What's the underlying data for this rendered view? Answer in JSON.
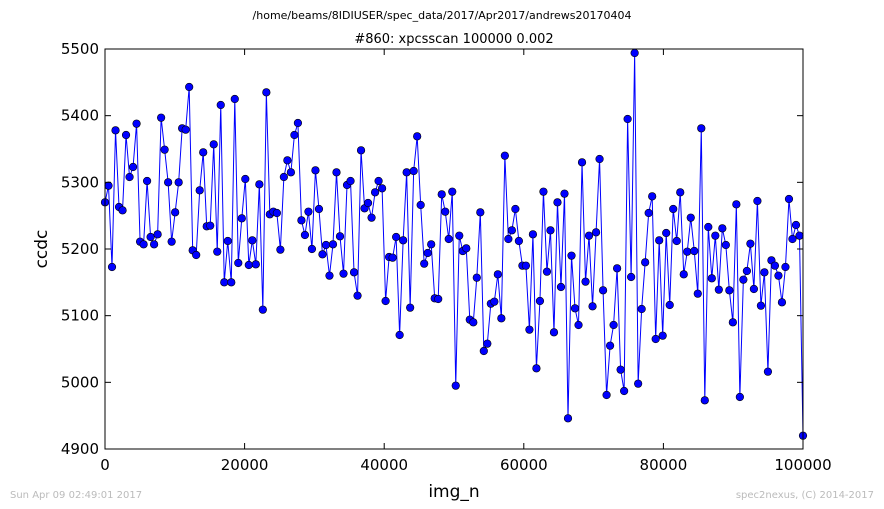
{
  "header": {
    "suptitle": "/home/beams/8IDIUSER/spec_data/2017/Apr2017/andrews20170404"
  },
  "footer": {
    "timestamp": "Sun Apr 09 02:49:01 2017",
    "credit": "spec2nexus, (C) 2014-2017"
  },
  "chart_data": {
    "type": "line",
    "title": "#860: xpcsscan 100000 0.002",
    "xlabel": "img_n",
    "ylabel": "ccdc",
    "xlim": [
      0,
      100000
    ],
    "ylim": [
      4900,
      5500
    ],
    "xticks": [
      "0",
      "20000",
      "40000",
      "60000",
      "80000",
      "100000"
    ],
    "yticks": [
      "4900",
      "5000",
      "5100",
      "5200",
      "5300",
      "5400",
      "5500"
    ],
    "grid": false,
    "legend": "none",
    "marker": "circle",
    "line_color": "#0000ff",
    "series": [
      {
        "x": [
          0,
          503,
          1005,
          1508,
          2010,
          2513,
          3015,
          3518,
          4020,
          4523,
          5025,
          5528,
          6030,
          6533,
          7035,
          7538,
          8040,
          8543,
          9045,
          9548,
          10050,
          10553,
          11055,
          11558,
          12060,
          12563,
          13065,
          13568,
          14070,
          14573,
          15075,
          15578,
          16080,
          16583,
          17085,
          17588,
          18090,
          18593,
          19095,
          19598,
          20101,
          20603,
          21106,
          21608,
          22111,
          22613,
          23116,
          23618,
          24121,
          24623,
          25126,
          25628,
          26131,
          26633,
          27136,
          27638,
          28141,
          28643,
          29146,
          29648,
          30151,
          30653,
          31156,
          31658,
          32161,
          32663,
          33166,
          33668,
          34171,
          34673,
          35176,
          35678,
          36181,
          36683,
          37186,
          37688,
          38191,
          38693,
          39196,
          39698,
          40201,
          40704,
          41206,
          41709,
          42211,
          42714,
          43216,
          43719,
          44221,
          44724,
          45226,
          45729,
          46231,
          46734,
          47236,
          47739,
          48241,
          48744,
          49246,
          49749,
          50251,
          50754,
          51256,
          51759,
          52261,
          52764,
          53266,
          53769,
          54271,
          54774,
          55276,
          55779,
          56281,
          56784,
          57286,
          57789,
          58291,
          58794,
          59296,
          59799,
          60302,
          60804,
          61307,
          61809,
          62312,
          62814,
          63317,
          63819,
          64322,
          64824,
          65327,
          65829,
          66332,
          66834,
          67337,
          67839,
          68342,
          68844,
          69347,
          69849,
          70352,
          70854,
          71357,
          71859,
          72362,
          72864,
          73367,
          73869,
          74372,
          74874,
          75377,
          75879,
          76382,
          76884,
          77387,
          77889,
          78392,
          78894,
          79397,
          79899,
          80402,
          80905,
          81407,
          81910,
          82412,
          82915,
          83417,
          83920,
          84422,
          84925,
          85427,
          85930,
          86432,
          86935,
          87437,
          87940,
          88442,
          88945,
          89447,
          89950,
          90452,
          90955,
          91457,
          91960,
          92462,
          92965,
          93467,
          93970,
          94472,
          94975,
          95477,
          95980,
          96482,
          96985,
          97487,
          97990,
          98492,
          98995,
          99497,
          100000
        ],
        "values": [
          5270,
          5295,
          5173,
          5378,
          5263,
          5258,
          5371,
          5308,
          5323,
          5388,
          5211,
          5207,
          5302,
          5218,
          5207,
          5222,
          5397,
          5349,
          5300,
          5211,
          5255,
          5300,
          5381,
          5379,
          5443,
          5198,
          5191,
          5288,
          5345,
          5234,
          5235,
          5357,
          5196,
          5416,
          5150,
          5212,
          5150,
          5425,
          5179,
          5246,
          5305,
          5176,
          5213,
          5177,
          5297,
          5109,
          5435,
          5252,
          5256,
          5254,
          5199,
          5308,
          5333,
          5315,
          5371,
          5389,
          5243,
          5221,
          5256,
          5200,
          5318,
          5260,
          5192,
          5206,
          5160,
          5207,
          5315,
          5219,
          5163,
          5296,
          5302,
          5165,
          5130,
          5348,
          5261,
          5269,
          5247,
          5285,
          5302,
          5291,
          5122,
          5188,
          5187,
          5218,
          5071,
          5213,
          5315,
          5112,
          5317,
          5369,
          5266,
          5178,
          5194,
          5207,
          5126,
          5125,
          5282,
          5256,
          5215,
          5286,
          4995,
          5220,
          5197,
          5201,
          5094,
          5090,
          5157,
          5255,
          5047,
          5058,
          5118,
          5121,
          5162,
          5096,
          5340,
          5215,
          5228,
          5260,
          5212,
          5175,
          5175,
          5079,
          5222,
          5021,
          5122,
          5286,
          5166,
          5228,
          5075,
          5270,
          5143,
          5283,
          4946,
          5190,
          5111,
          5086,
          5330,
          5151,
          5220,
          5114,
          5225,
          5335,
          5138,
          4981,
          5055,
          5086,
          5171,
          5019,
          4987,
          5395,
          5158,
          5494,
          4998,
          5110,
          5180,
          5254,
          5279,
          5065,
          5213,
          5070,
          5224,
          5116,
          5260,
          5212,
          5285,
          5162,
          5196,
          5247,
          5197,
          5133,
          5381,
          4973,
          5233,
          5156,
          5220,
          5139,
          5231,
          5206,
          5138,
          5090,
          5267,
          4978,
          5154,
          5167,
          5208,
          5140,
          5272,
          5115,
          5165,
          5016,
          5183,
          5175,
          5160,
          5120,
          5173,
          5275,
          5215,
          5236,
          5220,
          4920
        ]
      }
    ]
  }
}
